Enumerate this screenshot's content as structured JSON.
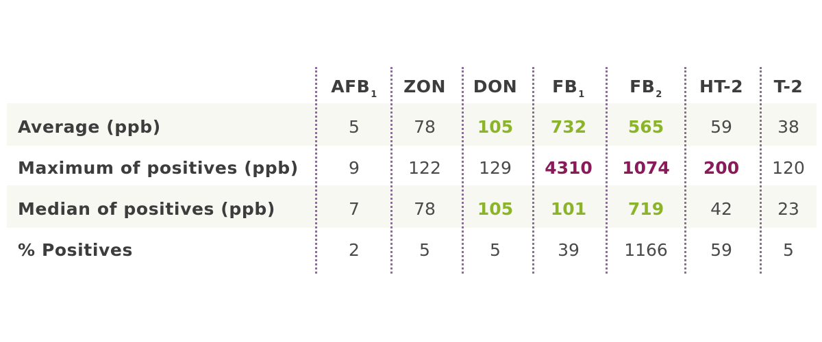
{
  "columns": [
    {
      "base": "AFB",
      "sub": "1"
    },
    {
      "base": "ZON",
      "sub": ""
    },
    {
      "base": "DON",
      "sub": ""
    },
    {
      "base": "FB",
      "sub": "1"
    },
    {
      "base": "FB",
      "sub": "2"
    },
    {
      "base": "HT-2",
      "sub": ""
    },
    {
      "base": "T-2",
      "sub": ""
    }
  ],
  "rows": [
    {
      "label": "Average (ppb)",
      "values": [
        "5",
        "78",
        "105",
        "732",
        "565",
        "59",
        "38"
      ],
      "highlight": [
        "",
        "",
        "green",
        "green",
        "green",
        "",
        ""
      ]
    },
    {
      "label": "Maximum of positives (ppb)",
      "values": [
        "9",
        "122",
        "129",
        "4310",
        "1074",
        "200",
        "120"
      ],
      "highlight": [
        "",
        "",
        "",
        "purple",
        "purple",
        "purple",
        ""
      ]
    },
    {
      "label": "Median of positives (ppb)",
      "values": [
        "7",
        "78",
        "105",
        "101",
        "719",
        "42",
        "23"
      ],
      "highlight": [
        "",
        "",
        "green",
        "green",
        "green",
        "",
        ""
      ]
    },
    {
      "label": "% Positives",
      "values": [
        "2",
        "5",
        "5",
        "39",
        "1166",
        "59",
        "5"
      ],
      "highlight": [
        "",
        "",
        "",
        "",
        "",
        "",
        ""
      ]
    }
  ],
  "colors": {
    "band": "#f8f8f3",
    "green": "#8cb42a",
    "purple": "#8b1a5a",
    "divider": "#8e6a9a",
    "text": "#3d3d3d"
  }
}
